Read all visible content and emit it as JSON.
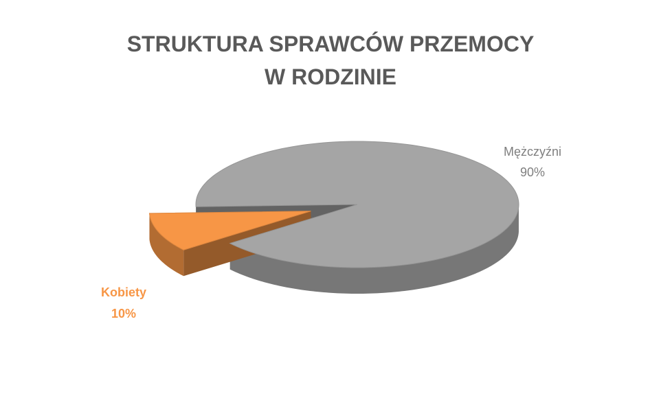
{
  "chart_data": {
    "type": "pie3d",
    "title": "STRUKTURA SPRAWCÓW PRZEMOCY W RODZINIE",
    "categories": [
      "Mężczyźni",
      "Kobiety"
    ],
    "values": [
      90,
      10
    ],
    "value_labels": [
      "90%",
      "10%"
    ],
    "colors": [
      "#a5a5a5",
      "#f79646"
    ],
    "label_colors": [
      "#7f7f7f",
      "#f79646"
    ]
  }
}
